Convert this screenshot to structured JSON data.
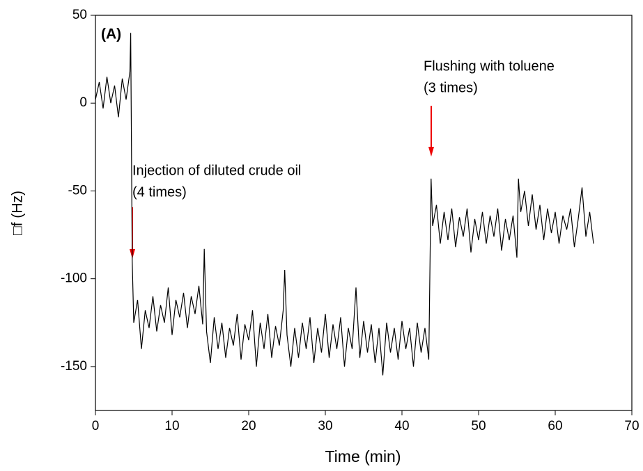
{
  "chart_data": {
    "type": "line",
    "x_label": "Time (min)",
    "y_label": "□f (Hz)",
    "annotations": [
      "(A)",
      "Injection of diluted crude oil",
      "(4 times)",
      "Flushing with toluene",
      "(3 times)"
    ],
    "xlim": [
      0,
      70
    ],
    "xticks": [
      0,
      10,
      20,
      30,
      40,
      50,
      60,
      70
    ],
    "ylim": [
      -175,
      50
    ],
    "yticks": [
      50,
      0,
      -50,
      -100,
      -150
    ],
    "series": [
      {
        "color": "#000000",
        "x": [
          0,
          0.5,
          1,
          1.5,
          2,
          2.5,
          3,
          3.5,
          4,
          4.5,
          4.6,
          4.8,
          5,
          5.5,
          6,
          6.5,
          7,
          7.5,
          8,
          8.5,
          9,
          9.5,
          10,
          10.5,
          11,
          11.5,
          12,
          12.5,
          13,
          13.5,
          14,
          14.2,
          14.5,
          15,
          15.5,
          16,
          16.5,
          17,
          17.5,
          18,
          18.5,
          19,
          19.5,
          20,
          20.5,
          21,
          21.5,
          22,
          22.5,
          23,
          23.5,
          24,
          24.5,
          24.7,
          25,
          25.5,
          26,
          26.5,
          27,
          27.5,
          28,
          28.5,
          29,
          29.5,
          30,
          30.5,
          31,
          31.5,
          32,
          32.5,
          33,
          33.5,
          34,
          34.5,
          35,
          35.5,
          36,
          36.5,
          37,
          37.5,
          38,
          38.5,
          39,
          39.5,
          40,
          40.5,
          41,
          41.5,
          42,
          42.5,
          43,
          43.5,
          43.8,
          44,
          44.5,
          45,
          45.5,
          46,
          46.5,
          47,
          47.5,
          48,
          48.5,
          49,
          49.5,
          50,
          50.5,
          51,
          51.5,
          52,
          52.5,
          53,
          53.5,
          54,
          54.5,
          55,
          55.2,
          55.5,
          56,
          56.5,
          57,
          57.5,
          58,
          58.5,
          59,
          59.5,
          60,
          60.5,
          61,
          61.5,
          62,
          62.5,
          63,
          63.5,
          64,
          64.5,
          65
        ],
        "values": [
          2,
          12,
          -3,
          15,
          0,
          10,
          -8,
          14,
          2,
          18,
          40,
          -90,
          -125,
          -112,
          -140,
          -118,
          -128,
          -110,
          -130,
          -115,
          -125,
          -105,
          -132,
          -112,
          -122,
          -108,
          -128,
          -110,
          -120,
          -104,
          -126,
          -83,
          -130,
          -148,
          -122,
          -140,
          -125,
          -145,
          -128,
          -138,
          -120,
          -146,
          -126,
          -135,
          -118,
          -150,
          -125,
          -140,
          -120,
          -145,
          -127,
          -138,
          -118,
          -95,
          -132,
          -150,
          -128,
          -145,
          -125,
          -140,
          -122,
          -148,
          -128,
          -142,
          -120,
          -145,
          -126,
          -140,
          -122,
          -150,
          -128,
          -140,
          -105,
          -145,
          -124,
          -142,
          -126,
          -148,
          -128,
          -155,
          -125,
          -142,
          -128,
          -146,
          -124,
          -140,
          -128,
          -150,
          -125,
          -142,
          -128,
          -146,
          -43,
          -70,
          -58,
          -80,
          -62,
          -78,
          -60,
          -82,
          -65,
          -76,
          -60,
          -85,
          -66,
          -78,
          -62,
          -80,
          -64,
          -76,
          -60,
          -84,
          -66,
          -78,
          -64,
          -88,
          -43,
          -62,
          -50,
          -70,
          -52,
          -72,
          -58,
          -78,
          -60,
          -74,
          -62,
          -80,
          -64,
          -72,
          -60,
          -82,
          -66,
          -48,
          -76,
          -62,
          -80
        ]
      }
    ]
  }
}
